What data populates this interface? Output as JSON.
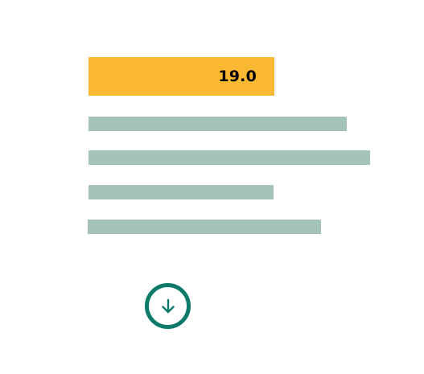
{
  "highlight": {
    "value": "19.0",
    "color": "#FBB832"
  },
  "bars": {
    "color": "#A5C3B9",
    "count": 4
  },
  "download": {
    "icon": "download-arrow-icon",
    "color": "#0B7A69"
  }
}
